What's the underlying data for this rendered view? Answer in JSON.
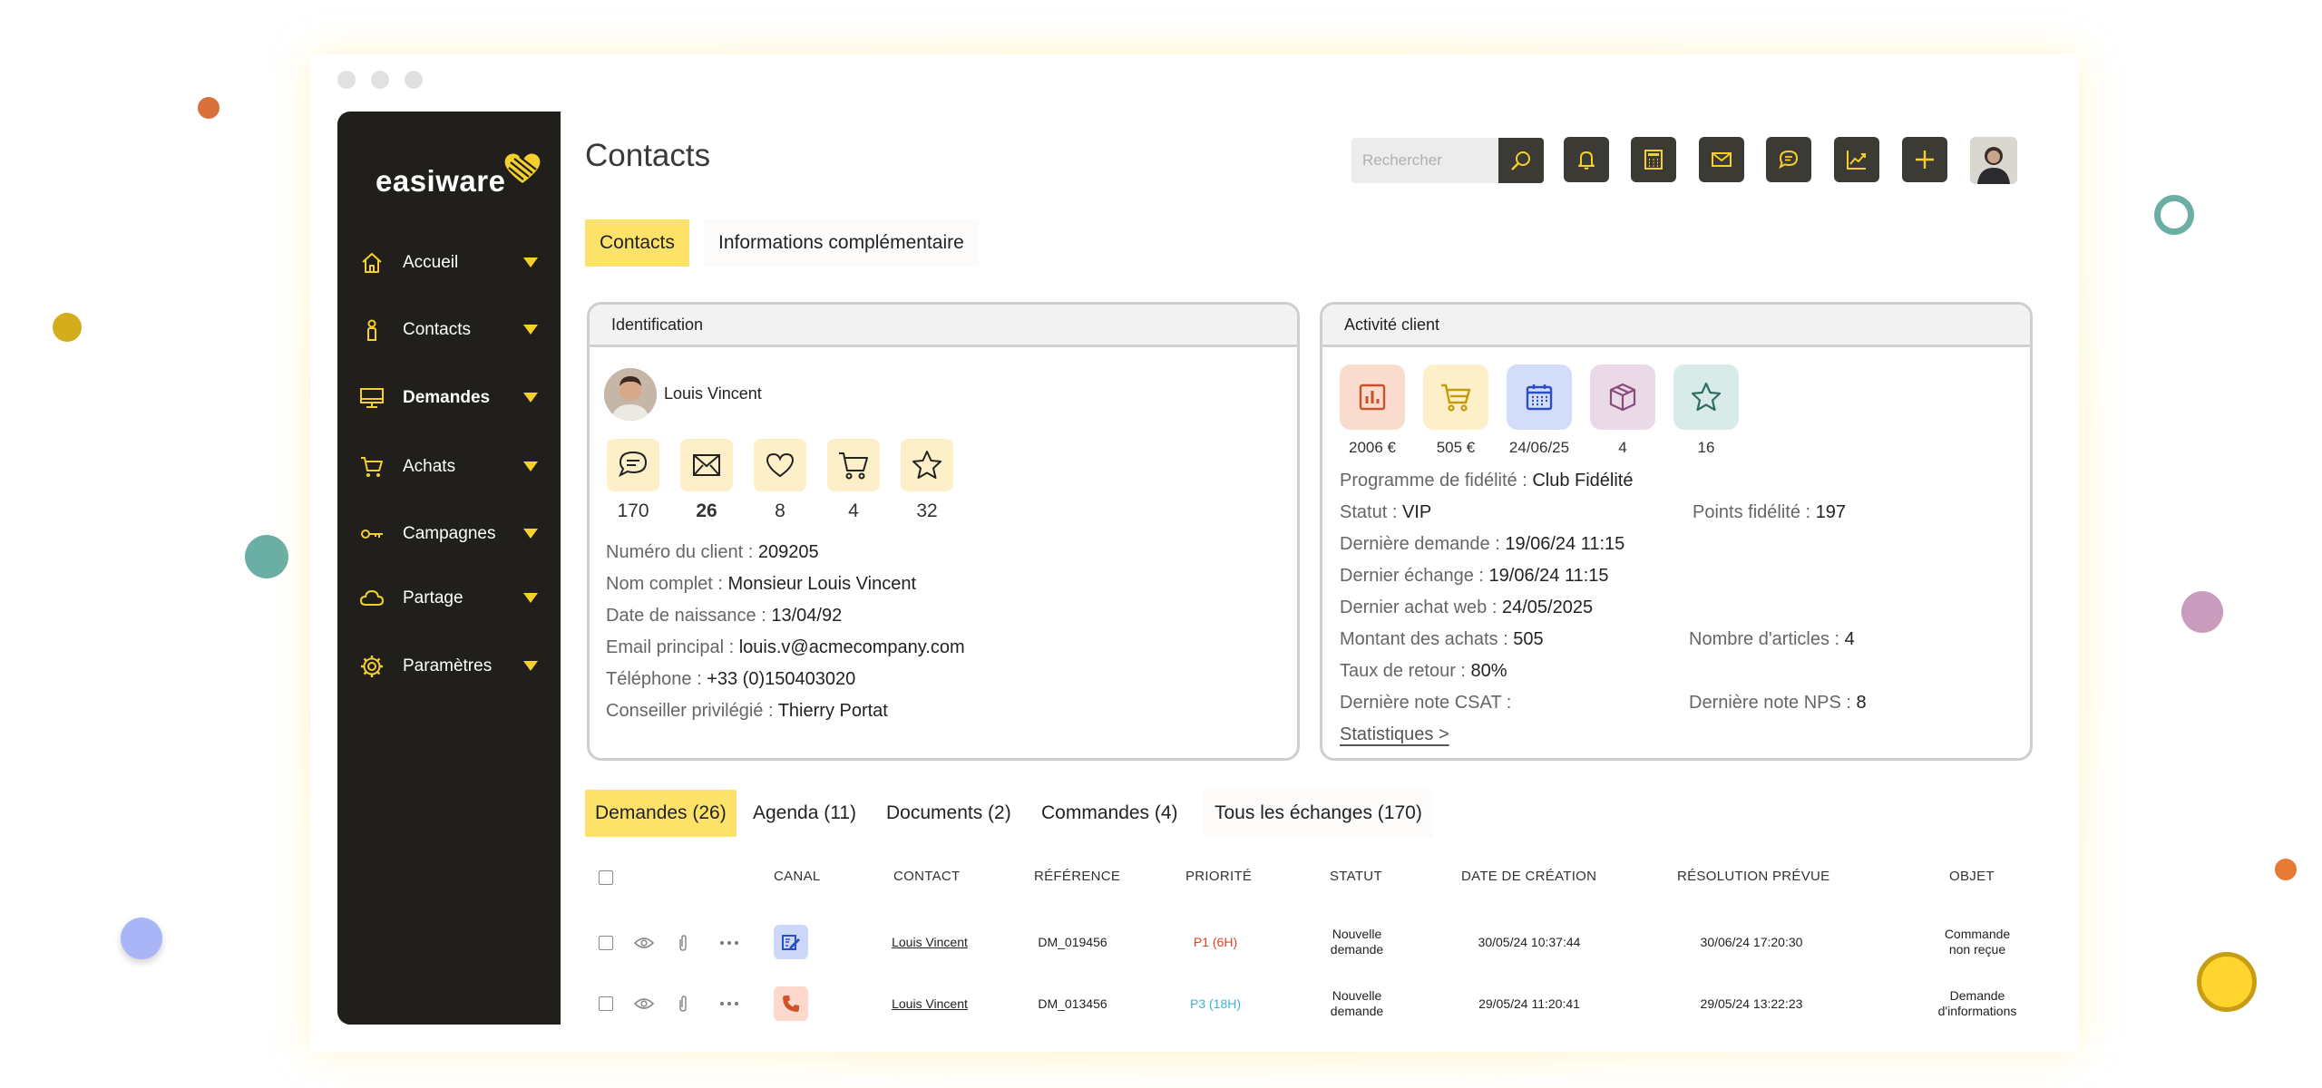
{
  "app": {
    "brand": "easiware",
    "page_title": "Contacts"
  },
  "sidebar": {
    "items": [
      {
        "label": "Accueil",
        "icon": "home-icon"
      },
      {
        "label": "Contacts",
        "icon": "person-icon"
      },
      {
        "label": "Demandes",
        "icon": "monitor-icon",
        "active": true
      },
      {
        "label": "Achats",
        "icon": "cart-icon"
      },
      {
        "label": "Campagnes",
        "icon": "key-icon"
      },
      {
        "label": "Partage",
        "icon": "cloud-icon"
      },
      {
        "label": "Paramètres",
        "icon": "gear-icon"
      }
    ]
  },
  "toolbar": {
    "search_placeholder": "Rechercher",
    "buttons": [
      "bell-icon",
      "calculator-icon",
      "mail-icon",
      "chat-icon",
      "chart-icon",
      "plus-icon"
    ]
  },
  "tabs": [
    {
      "label": "Contacts",
      "active": true
    },
    {
      "label": "Informations complémentaire",
      "active": false
    }
  ],
  "identification": {
    "title": "Identification",
    "name": "Louis Vincent",
    "stats": [
      {
        "icon": "chat-icon",
        "value": "170"
      },
      {
        "icon": "mail-icon",
        "value": "26"
      },
      {
        "icon": "heart-icon",
        "value": "8"
      },
      {
        "icon": "cart-icon",
        "value": "4"
      },
      {
        "icon": "star-icon",
        "value": "32"
      }
    ],
    "fields": [
      {
        "label": "Numéro du client : ",
        "value": "209205"
      },
      {
        "label": "Nom complet : ",
        "value": "Monsieur Louis Vincent"
      },
      {
        "label": "Date de naissance : ",
        "value": "13/04/92"
      },
      {
        "label": "Email principal : ",
        "value": "louis.v@acmecompany.com"
      },
      {
        "label": "Téléphone : ",
        "value": "+33 (0)150403020"
      },
      {
        "label": "Conseiller privilégié : ",
        "value": "Thierry Portat"
      }
    ]
  },
  "activity": {
    "title": "Activité client",
    "tiles": [
      {
        "icon": "report-icon",
        "value": "2006 €",
        "color": "#fadccf"
      },
      {
        "icon": "cart-icon",
        "value": "505 €",
        "color": "#fdf0c8"
      },
      {
        "icon": "calendar-icon",
        "value": "24/06/25",
        "color": "#d3dcf8"
      },
      {
        "icon": "box-icon",
        "value": "4",
        "color": "#ead9e6"
      },
      {
        "icon": "star-icon",
        "value": "16",
        "color": "#d8ebe8"
      }
    ],
    "fields": [
      {
        "label": "Programme de fidélité : ",
        "value": "Club Fidélité"
      },
      {
        "label": "Statut : ",
        "value": "VIP"
      },
      {
        "label": "Points fidélité : ",
        "value": "197"
      },
      {
        "label": "Dernière demande : ",
        "value": "19/06/24 11:15"
      },
      {
        "label": "Dernier échange : ",
        "value": "19/06/24 11:15"
      },
      {
        "label": "Dernier achat web : ",
        "value": "24/05/2025"
      },
      {
        "label": "Montant des achats : ",
        "value": "505"
      },
      {
        "label": "Nombre d'articles : ",
        "value": "4"
      },
      {
        "label": "Taux de retour : ",
        "value": "80%"
      },
      {
        "label": "Dernière note CSAT :",
        "value": ""
      },
      {
        "label": "Dernière note NPS : ",
        "value": "8"
      }
    ],
    "link": "Statistiques >"
  },
  "subtabs": [
    {
      "label": "Demandes (26)",
      "active": true
    },
    {
      "label": "Agenda (11)"
    },
    {
      "label": "Documents (2)"
    },
    {
      "label": "Commandes (4)"
    },
    {
      "label": "Tous les échanges (170)"
    }
  ],
  "table": {
    "headers": [
      "CANAL",
      "CONTACT",
      "RÉFÉRENCE",
      "PRIORITÉ",
      "STATUT",
      "DATE DE CRÉATION",
      "RÉSOLUTION PRÉVUE",
      "OBJET"
    ],
    "rows": [
      {
        "canal": "form-icon",
        "canal_color": "#cdd7fa",
        "contact": "Louis Vincent",
        "reference": "DM_019456",
        "priority": "P1 (6H)",
        "priority_color": "#e0402a",
        "status_1": "Nouvelle",
        "status_2": "demande",
        "created": "30/05/24 10:37:44",
        "due": "30/06/24 17:20:30",
        "subject_1": "Commande",
        "subject_2": "non reçue"
      },
      {
        "canal": "phone-icon",
        "canal_color": "#fcd9cc",
        "contact": "Louis Vincent",
        "reference": "DM_013456",
        "priority": "P3 (18H)",
        "priority_color": "#3ab4d2",
        "status_1": "Nouvelle",
        "status_2": "demande",
        "created": "29/05/24 11:20:41",
        "due": "29/05/24 13:22:23",
        "subject_1": "Demande",
        "subject_2": "d'informations"
      }
    ]
  }
}
